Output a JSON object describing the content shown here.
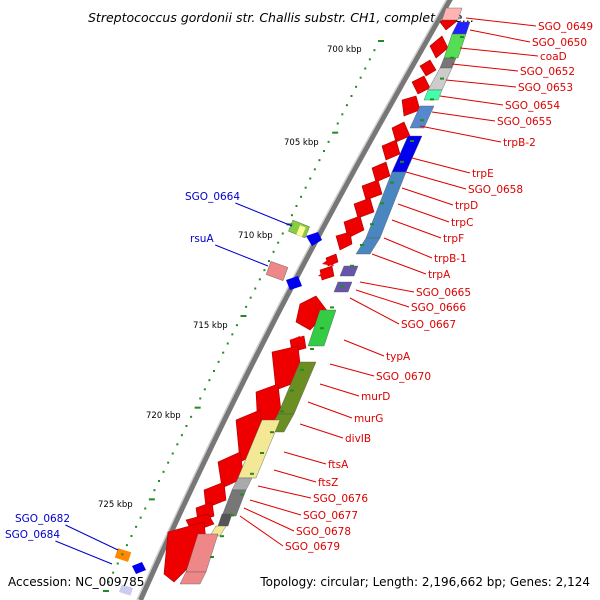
{
  "title": "Streptococcus gordonii str. Challis substr. CH1, complete ge...",
  "footer": {
    "accession": "Accession: NC_009785",
    "summary": "Topology: circular; Length: 2,196,662 bp; Genes: 2,124"
  },
  "colors": {
    "right_label": "#dd0000",
    "left_label": "#0000cc",
    "forward_gene": "#ee0000",
    "backbone": "#888888",
    "tick": "#228b22"
  },
  "kbp_ticks": [
    "700 kbp",
    "705 kbp",
    "710 kbp",
    "715 kbp",
    "720 kbp",
    "725 kbp"
  ],
  "right_labels": [
    "SGO_0649",
    "SGO_0650",
    "coaD",
    "SGO_0652",
    "SGO_0653",
    "SGO_0654",
    "SGO_0655",
    "trpB-2",
    "trpE",
    "SGO_0658",
    "trpD",
    "trpC",
    "trpF",
    "trpB-1",
    "trpA",
    "SGO_0665",
    "SGO_0666",
    "SGO_0667",
    "typA",
    "SGO_0670",
    "murD",
    "murG",
    "divIB",
    "ftsA",
    "ftsZ",
    "SGO_0676",
    "SGO_0677",
    "SGO_0678",
    "SGO_0679"
  ],
  "left_labels": [
    "SGO_0664",
    "rsuA",
    "SGO_0682",
    "SGO_0684"
  ]
}
